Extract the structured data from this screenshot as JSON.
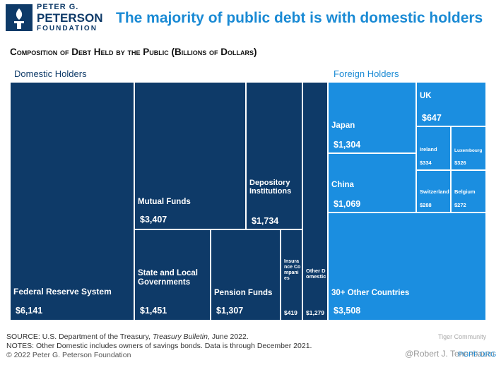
{
  "brand": {
    "line1": "PETER G.",
    "line2": "PETERSON",
    "line3": "FOUNDATION"
  },
  "headline": "The majority of public debt is with domestic holders",
  "chart_data": {
    "type": "treemap",
    "title": "Composition of Debt Held by the Public (Billions of Dollars)",
    "groups": [
      {
        "name": "Domestic Holders",
        "color": "#0e3a68",
        "items": [
          {
            "name": "Federal Reserve System",
            "value": 6141,
            "value_label": "$6,141"
          },
          {
            "name": "Mutual Funds",
            "value": 3407,
            "value_label": "$3,407"
          },
          {
            "name": "State and Local Governments",
            "value": 1451,
            "value_label": "$1,451"
          },
          {
            "name": "Pension Funds",
            "value": 1307,
            "value_label": "$1,307"
          },
          {
            "name": "Insurance Companies",
            "value": 419,
            "value_label": "$419"
          },
          {
            "name": "Depository Institutions",
            "value": 1734,
            "value_label": "$1,734"
          },
          {
            "name": "Other Domestic",
            "value": 1279,
            "value_label": "$1,279"
          }
        ]
      },
      {
        "name": "Foreign Holders",
        "color": "#1b8ee0",
        "items": [
          {
            "name": "Japan",
            "value": 1304,
            "value_label": "$1,304"
          },
          {
            "name": "China",
            "value": 1069,
            "value_label": "$1,069"
          },
          {
            "name": "30+ Other Countries",
            "value": 3508,
            "value_label": "$3,508"
          },
          {
            "name": "UK",
            "value": 647,
            "value_label": "$647"
          },
          {
            "name": "Ireland",
            "value": 334,
            "value_label": "$334"
          },
          {
            "name": "Luxembourg",
            "value": 326,
            "value_label": "$326"
          },
          {
            "name": "Switzerland",
            "value": 288,
            "value_label": "$288"
          },
          {
            "name": "Belgium",
            "value": 272,
            "value_label": "$272"
          }
        ]
      }
    ]
  },
  "footer": {
    "source_prefix": "SOURCE: U.S. Department of the Treasury, ",
    "source_title": "Treasury Bulletin",
    "source_suffix": ", June 2022.",
    "notes": "NOTES: Other Domestic includes owners of savings bonds. Data is through December 2021.",
    "copyright": "© 2022 Peter G. Peterson Foundation",
    "site": "PGPF.ORG"
  },
  "watermark": {
    "community": "Tiger Community",
    "author": "@Robert J. Tenenbaum"
  }
}
